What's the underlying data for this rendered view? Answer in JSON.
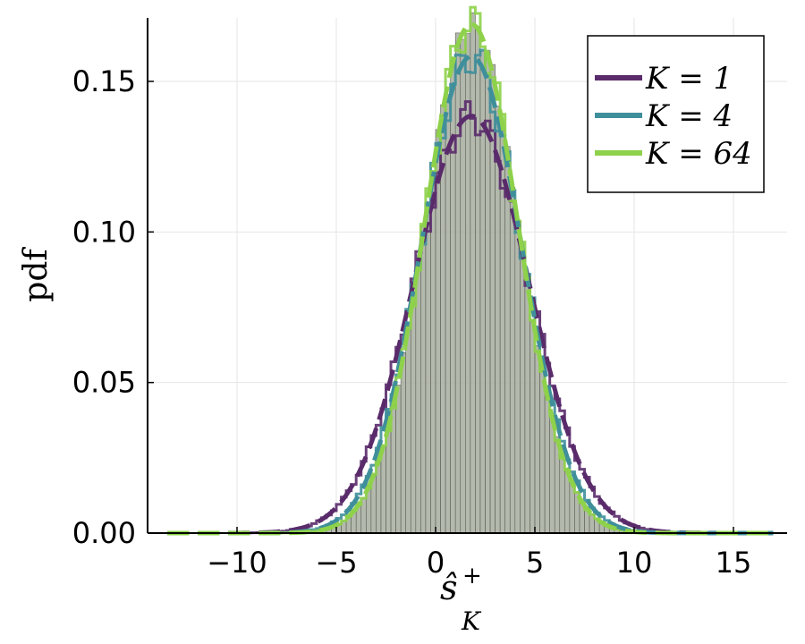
{
  "chart_data": {
    "type": "histogram+line",
    "xlabel_base": "ŝ",
    "xlabel_sup": "+",
    "xlabel_sub": "K",
    "ylabel": "pdf",
    "xlim": [
      -14,
      18
    ],
    "ylim": [
      0,
      0.17
    ],
    "xticks": [
      -10,
      -5,
      0,
      5,
      10,
      15
    ],
    "xtick_labels": [
      "−10",
      "−5",
      "0",
      "5",
      "10",
      "15"
    ],
    "yticks": [
      0,
      0.05,
      0.1,
      0.15
    ],
    "ytick_labels": [
      "0.00",
      "0.05",
      "0.10",
      "0.15"
    ],
    "grid": true,
    "legend_position": "top-right",
    "series": [
      {
        "name": "K = 1",
        "legend_label": "K = 1",
        "color": "#5a2b6b",
        "mean": 1.8,
        "sd": 2.88,
        "hist_range": [
          -9.5,
          13
        ]
      },
      {
        "name": "K = 4",
        "legend_label": "K = 4",
        "color": "#3f8f9b",
        "mean": 1.8,
        "sd": 2.52,
        "hist_range": [
          -8.5,
          11
        ]
      },
      {
        "name": "K = 64",
        "legend_label": "K = 64",
        "color": "#8ed14a",
        "mean": 1.8,
        "sd": 2.36,
        "hist_range": [
          -8,
          10
        ]
      }
    ],
    "histogram": {
      "bin_width": 0.25,
      "fill": "#a7ad9f",
      "edge": "#5c6058"
    }
  }
}
